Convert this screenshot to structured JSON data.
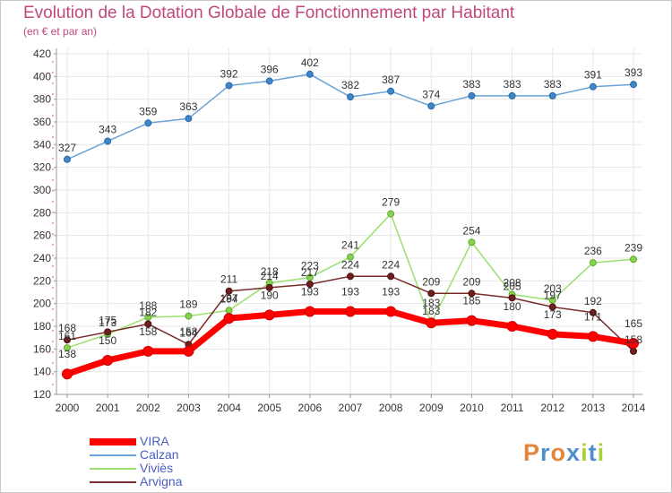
{
  "header": {
    "title": "Evolution de la Dotation Globale de Fonctionnement par Habitant",
    "subtitle": "(en € et par an)"
  },
  "chart_data": {
    "type": "line",
    "title": "Evolution de la Dotation Globale de Fonctionnement par Habitant",
    "subtitle": "(en € et par an)",
    "xlabel": "",
    "ylabel": "",
    "x": [
      2000,
      2001,
      2002,
      2003,
      2004,
      2005,
      2006,
      2007,
      2008,
      2009,
      2010,
      2011,
      2012,
      2013,
      2014
    ],
    "ylim": [
      120,
      420
    ],
    "yticks": [
      120,
      140,
      160,
      180,
      200,
      220,
      240,
      260,
      280,
      300,
      320,
      340,
      360,
      380,
      400,
      420
    ],
    "grid": true,
    "legend_position": "bottom-left",
    "series": [
      {
        "name": "VIRA",
        "color": "#ff0000",
        "values": [
          138,
          150,
          158,
          158,
          187,
          190,
          193,
          193,
          193,
          183,
          185,
          180,
          173,
          171,
          165
        ]
      },
      {
        "name": "Calzan",
        "color": "#6aa3d8",
        "values": [
          327,
          343,
          359,
          363,
          392,
          396,
          402,
          382,
          387,
          374,
          383,
          383,
          383,
          391,
          393
        ]
      },
      {
        "name": "Viviès",
        "color": "#99e06e",
        "values": [
          161,
          173,
          188,
          189,
          194,
          218,
          223,
          241,
          279,
          183,
          254,
          208,
          203,
          236,
          239
        ]
      },
      {
        "name": "Arvigna",
        "color": "#7a2b2b",
        "values": [
          168,
          175,
          182,
          164,
          211,
          214,
          217,
          224,
          224,
          209,
          209,
          205,
          197,
          192,
          158
        ]
      }
    ]
  },
  "legend": [
    "VIRA",
    "Calzan",
    "Viviès",
    "Arvigna"
  ],
  "logo": {
    "text": "Proxiti"
  },
  "colors": {
    "title": "#c2487c",
    "axis_text": "#333333",
    "grid": "#e6e6e6",
    "legend_text": "#4a5fc1",
    "logo": [
      "#e2873c",
      "#4f8fd0",
      "#e2873c",
      "#4f8fd0",
      "#a9cf3a",
      "#4f8fd0",
      "#a9cf3a"
    ]
  }
}
